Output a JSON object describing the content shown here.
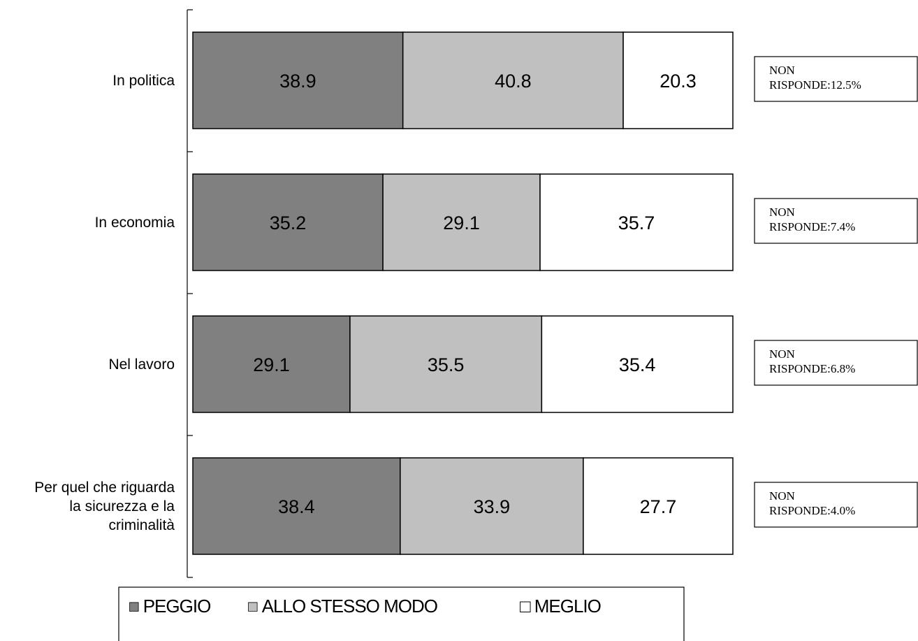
{
  "chart_data": {
    "type": "bar",
    "orientation": "horizontal",
    "stacked": true,
    "categories": [
      [
        "In politica"
      ],
      [
        "In economia"
      ],
      [
        "Nel lavoro"
      ],
      [
        "Per quel che riguarda",
        "la sicurezza e la",
        "criminalità"
      ]
    ],
    "series": [
      {
        "name": "PEGGIO",
        "color": "#808080",
        "values": [
          38.9,
          35.2,
          29.1,
          38.4
        ],
        "labels": [
          "38.9",
          "35.2",
          "29.1",
          "38.4"
        ]
      },
      {
        "name": "ALLO STESSO MODO",
        "color": "#c0c0c0",
        "values": [
          40.8,
          29.1,
          35.5,
          33.9
        ],
        "labels": [
          "40.8",
          "29.1",
          "35.5",
          "33.9"
        ]
      },
      {
        "name": "MEGLIO",
        "color": "#ffffff",
        "values": [
          20.3,
          35.7,
          35.4,
          27.7
        ],
        "labels": [
          "20.3",
          "35.7",
          "35.4",
          "27.7"
        ]
      }
    ],
    "annotations": [
      [
        "NON",
        "RISPONDE:12.5%"
      ],
      [
        "NON",
        "RISPONDE:7.4%"
      ],
      [
        "NON",
        "RISPONDE:6.8%"
      ],
      [
        "NON",
        "RISPONDE:4.0%"
      ]
    ],
    "xlim": [
      0,
      100
    ],
    "grid": false,
    "legend_position": "bottom",
    "legend_markers": [
      "■",
      "□"
    ]
  }
}
